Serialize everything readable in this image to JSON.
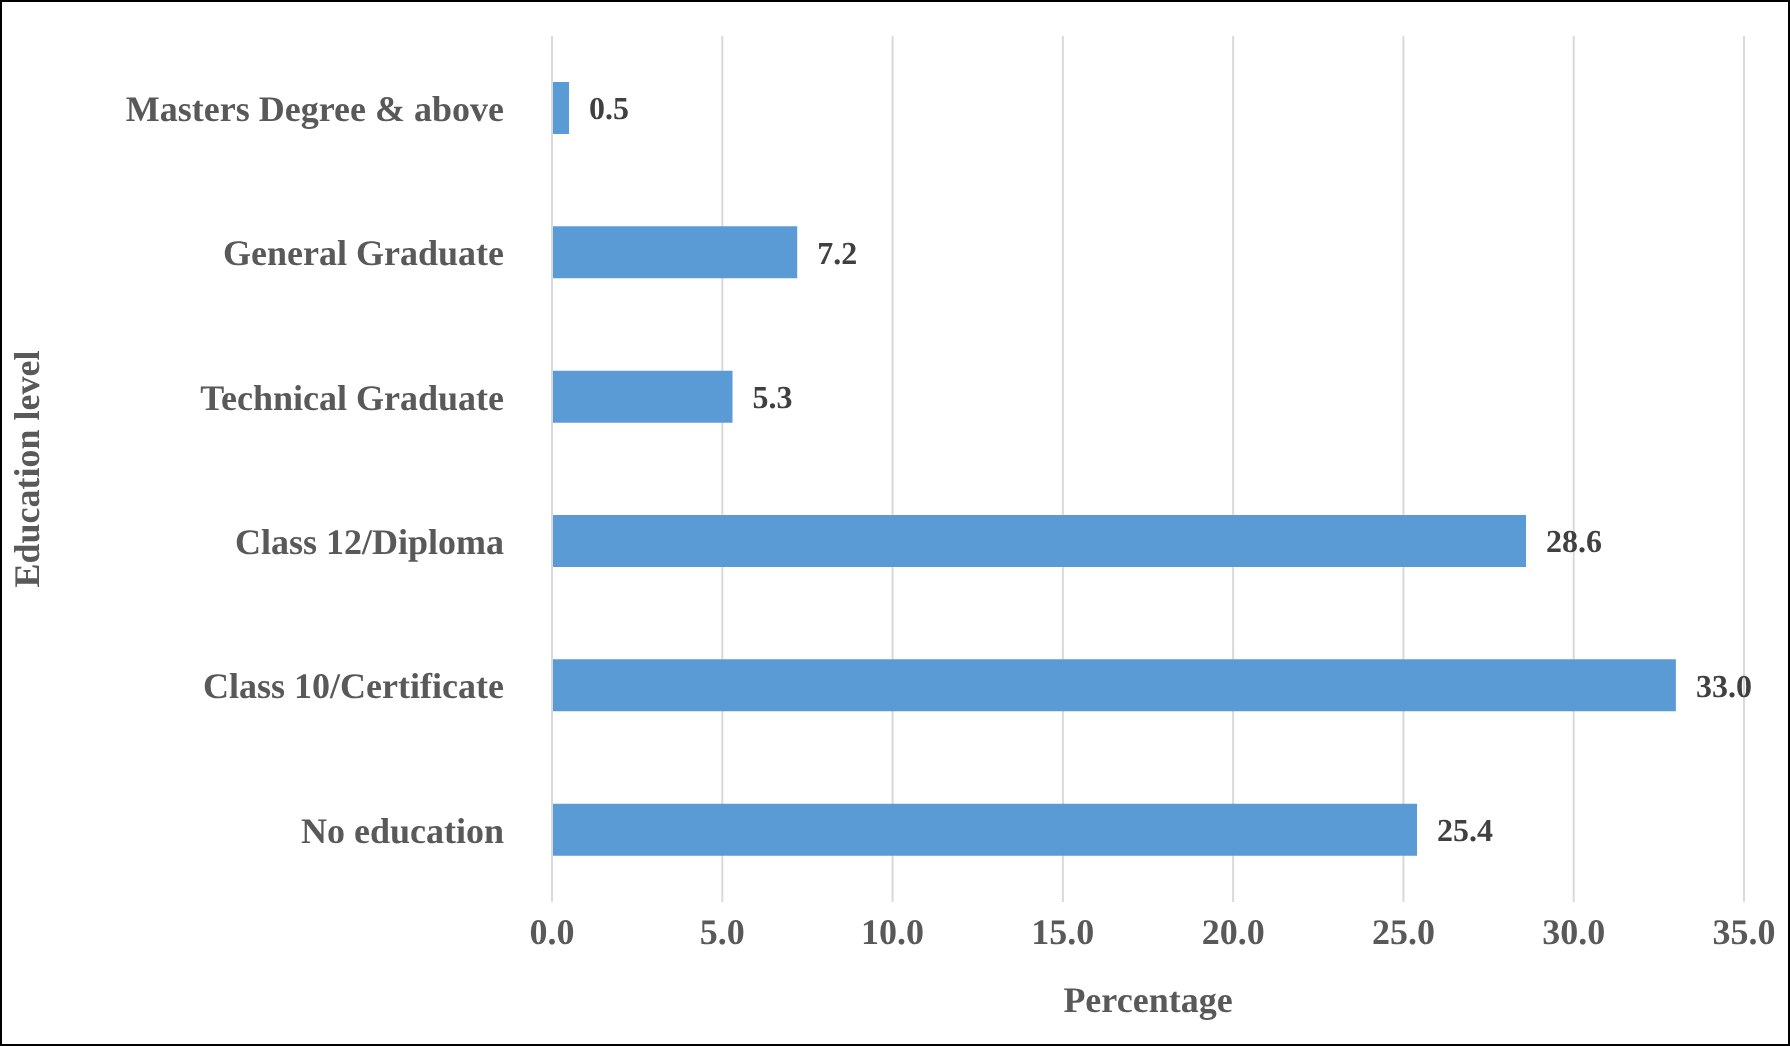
{
  "chart_data": {
    "type": "bar",
    "orientation": "horizontal",
    "xlabel": "Percentage",
    "ylabel": "Education level",
    "categories": [
      "Masters Degree & above",
      "General Graduate",
      "Technical Graduate",
      "Class 12/Diploma",
      "Class 10/Certificate",
      "No education"
    ],
    "values": [
      0.5,
      7.2,
      5.3,
      28.6,
      33.0,
      25.4
    ],
    "value_labels": [
      "0.5",
      "7.2",
      "5.3",
      "28.6",
      "33.0",
      "25.4"
    ],
    "color": "#5b9bd5",
    "xlim": [
      0,
      35
    ],
    "xticks": [
      {
        "value": 0,
        "label": "0.0"
      },
      {
        "value": 5,
        "label": "5.0"
      },
      {
        "value": 10,
        "label": "10.0"
      },
      {
        "value": 15,
        "label": "15.0"
      },
      {
        "value": 20,
        "label": "20.0"
      },
      {
        "value": 25,
        "label": "25.0"
      },
      {
        "value": 30,
        "label": "30.0"
      },
      {
        "value": 35,
        "label": "35.0"
      }
    ],
    "grid": "x"
  }
}
